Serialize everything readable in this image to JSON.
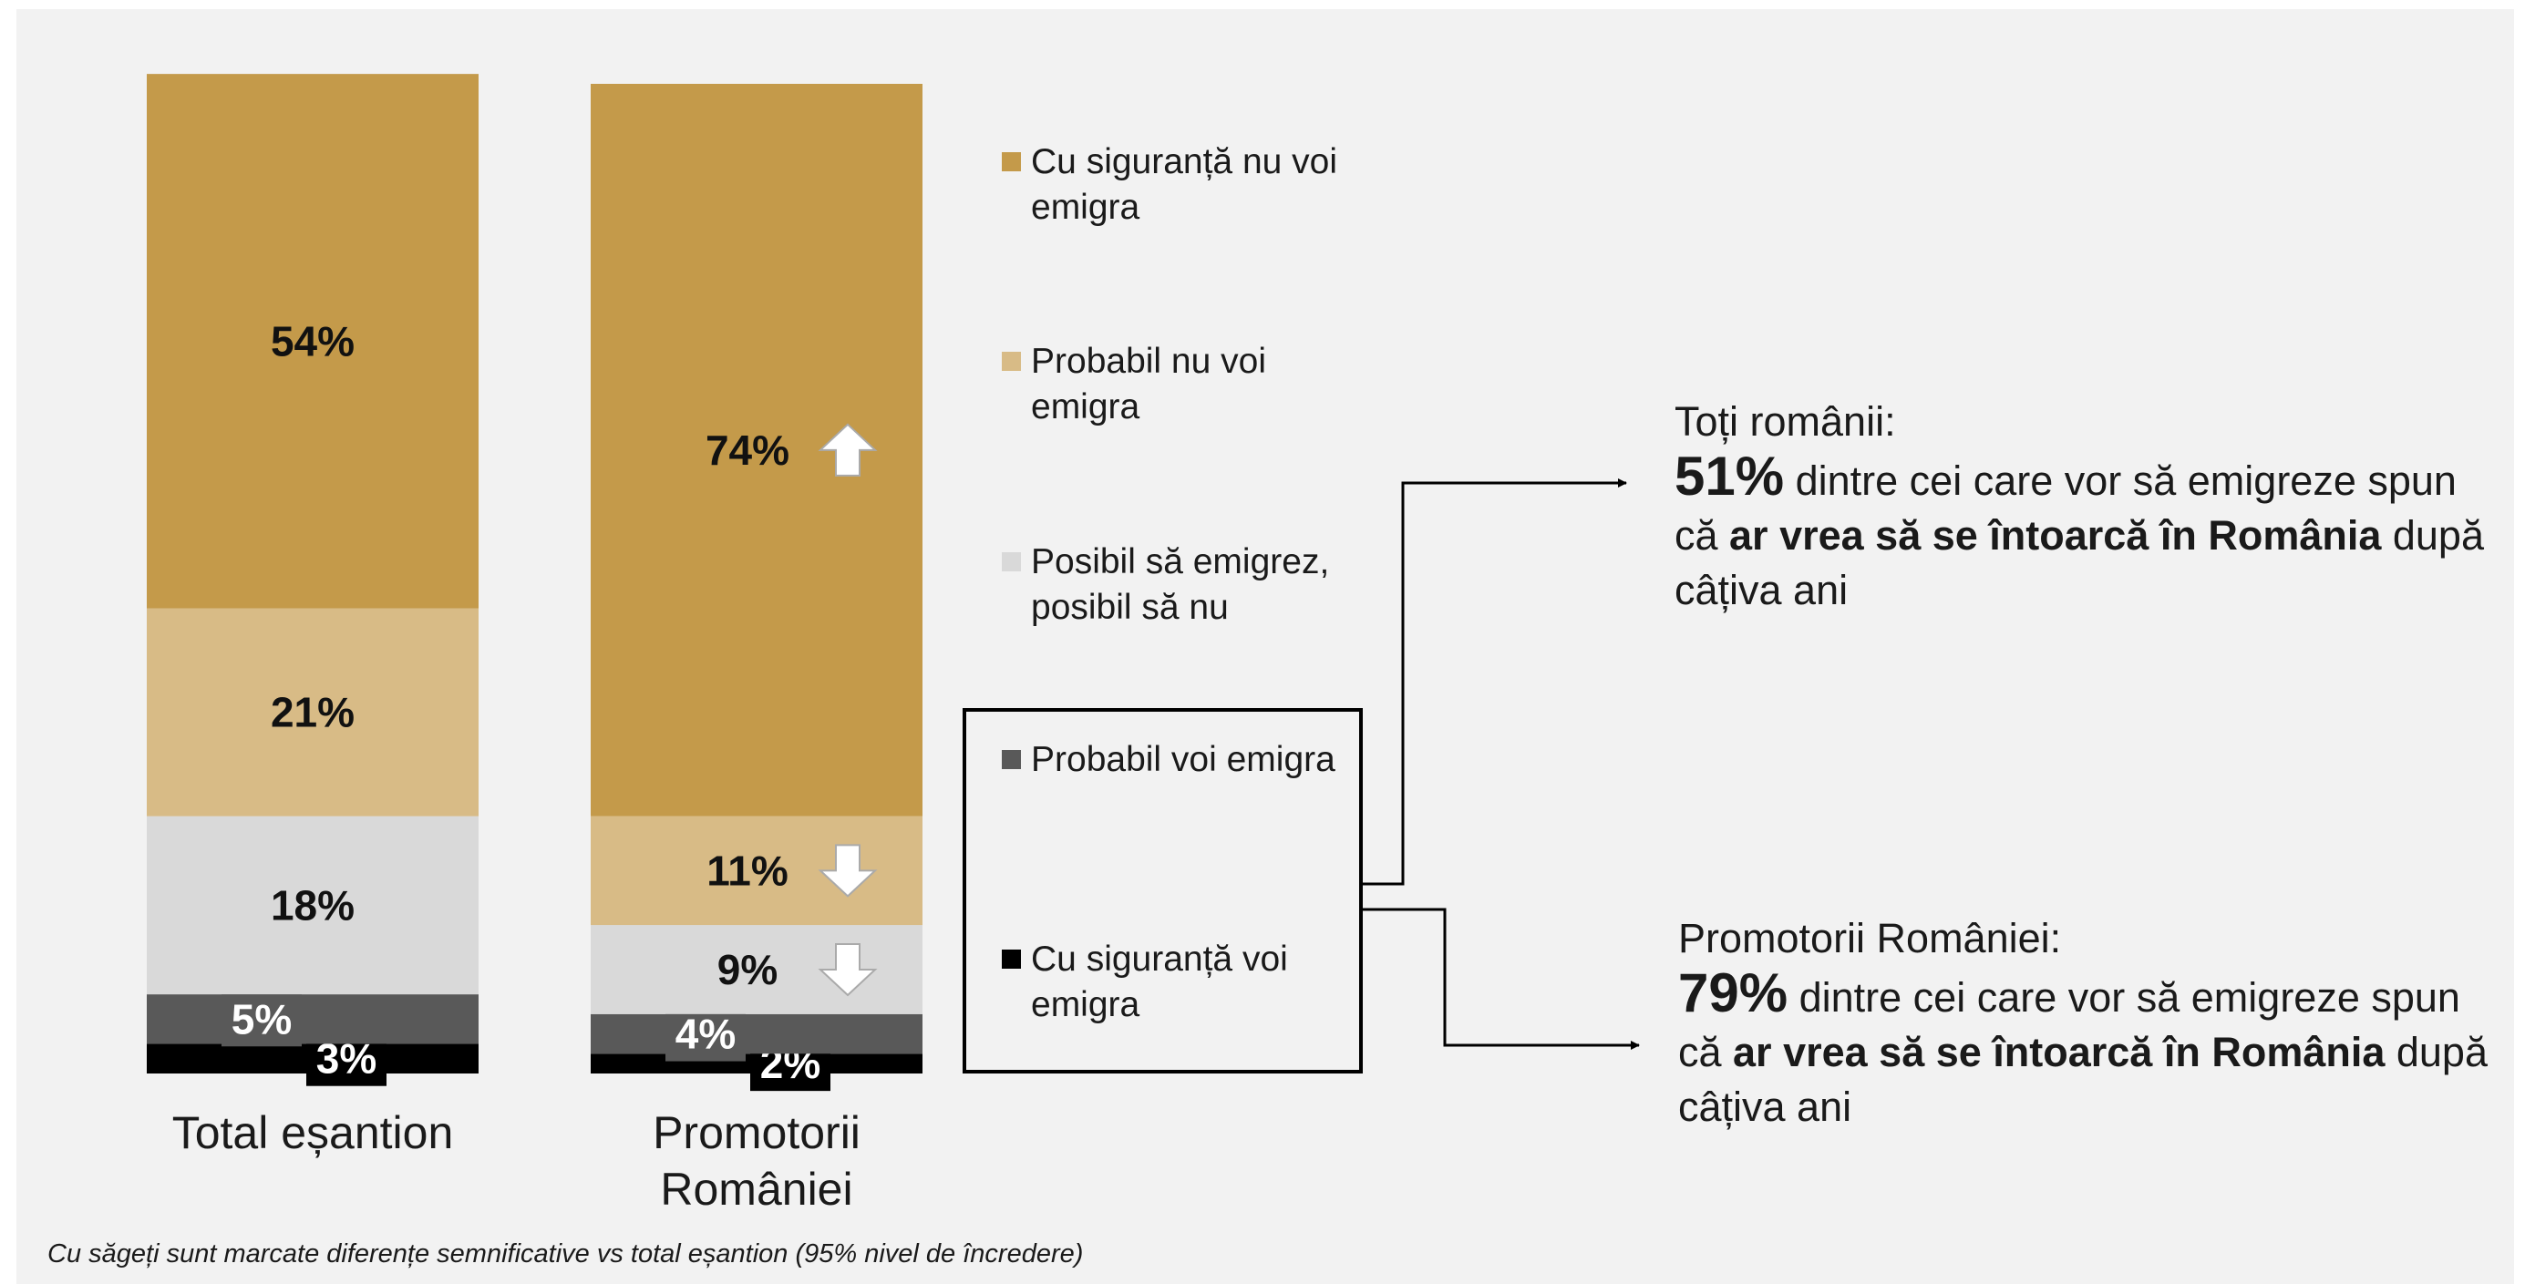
{
  "chart_data": {
    "type": "stacked_bar",
    "categories": [
      "Total eșantion",
      "Promotorii României"
    ],
    "ylim": [
      0,
      100
    ],
    "series": [
      {
        "name": "Cu siguranță voi emigra",
        "color": "#000000",
        "values": [
          3,
          2
        ],
        "value_labels": [
          "3%",
          "2%"
        ],
        "arrows": [
          null,
          null
        ]
      },
      {
        "name": "Probabil voi emigra",
        "color": "#595959",
        "values": [
          5,
          4
        ],
        "value_labels": [
          "5%",
          "4%"
        ],
        "arrows": [
          null,
          null
        ]
      },
      {
        "name": "Posibil să emigrez, posibil să nu",
        "color": "#d9d9d9",
        "values": [
          18,
          9
        ],
        "value_labels": [
          "18%",
          "9%"
        ],
        "arrows": [
          null,
          "down"
        ]
      },
      {
        "name": "Probabil nu voi emigra",
        "color": "#d8bb86",
        "values": [
          21,
          11
        ],
        "value_labels": [
          "21%",
          "11%"
        ],
        "arrows": [
          null,
          "down"
        ]
      },
      {
        "name": "Cu siguranță nu voi emigra",
        "color": "#c49a4a",
        "values": [
          54,
          74
        ],
        "value_labels": [
          "54%",
          "74%"
        ],
        "arrows": [
          null,
          "up"
        ]
      }
    ],
    "annotations": [
      {
        "heading": "Toți românii:",
        "parts": [
          "51%",
          " dintre cei care vor să emigreze spun că ",
          "ar vrea să se întoarcă în România",
          " după câțiva ani"
        ]
      },
      {
        "heading": "Promotorii României:",
        "parts": [
          "79%",
          " dintre cei care vor să emigreze spun că ",
          "ar vrea să se întoarcă în România",
          " după câțiva ani"
        ]
      }
    ],
    "footnote": "Cu săgeți sunt marcate diferențe semnificative vs total eșantion (95% nivel de încredere)"
  }
}
